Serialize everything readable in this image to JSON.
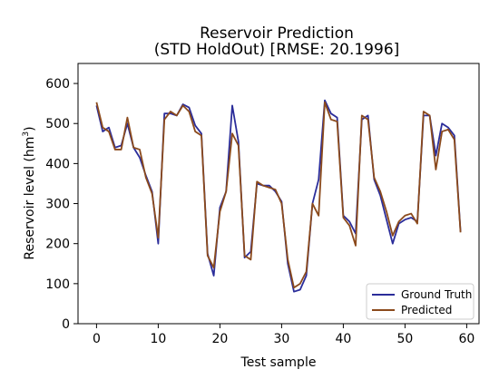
{
  "chart_data": {
    "type": "line",
    "title": "Reservoir Prediction",
    "subtitle": "(STD HoldOut) [RMSE: 20.1996]",
    "xlabel": "Test sample",
    "ylabel_main": "Reservoir level (hm",
    "ylabel_sup": "3",
    "ylabel_close": ")",
    "xlim": [
      -3,
      62
    ],
    "ylim": [
      0,
      650
    ],
    "xticks": [
      0,
      10,
      20,
      30,
      40,
      50,
      60
    ],
    "yticks": [
      0,
      100,
      200,
      300,
      400,
      500,
      600
    ],
    "grid": false,
    "legend_position": "lower-right",
    "series": [
      {
        "name": "Ground Truth",
        "color": "#2b2d9a",
        "values": [
          545,
          480,
          490,
          440,
          445,
          500,
          440,
          415,
          370,
          330,
          200,
          525,
          525,
          520,
          548,
          540,
          495,
          475,
          175,
          120,
          290,
          330,
          545,
          455,
          165,
          180,
          350,
          345,
          345,
          330,
          305,
          150,
          80,
          85,
          120,
          300,
          360,
          558,
          525,
          515,
          270,
          255,
          225,
          510,
          520,
          360,
          320,
          260,
          200,
          250,
          260,
          265,
          255,
          520,
          520,
          420,
          500,
          490,
          470,
          230
        ]
      },
      {
        "name": "Predicted",
        "color": "#8b4a1c",
        "values": [
          553,
          490,
          480,
          435,
          435,
          515,
          440,
          435,
          365,
          325,
          215,
          510,
          530,
          520,
          545,
          530,
          480,
          470,
          170,
          140,
          280,
          330,
          475,
          445,
          170,
          160,
          355,
          345,
          340,
          335,
          300,
          160,
          90,
          100,
          130,
          300,
          270,
          553,
          510,
          505,
          265,
          245,
          195,
          520,
          510,
          365,
          330,
          280,
          220,
          255,
          270,
          275,
          250,
          530,
          520,
          385,
          480,
          485,
          460,
          228
        ]
      }
    ]
  }
}
